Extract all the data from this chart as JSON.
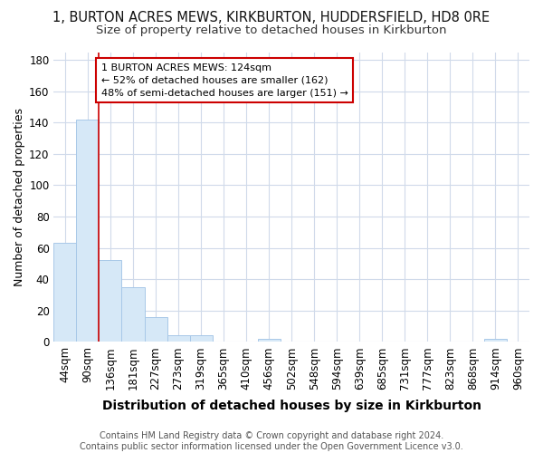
{
  "title": "1, BURTON ACRES MEWS, KIRKBURTON, HUDDERSFIELD, HD8 0RE",
  "subtitle": "Size of property relative to detached houses in Kirkburton",
  "xlabel": "Distribution of detached houses by size in Kirkburton",
  "ylabel": "Number of detached properties",
  "categories": [
    "44sqm",
    "90sqm",
    "136sqm",
    "181sqm",
    "227sqm",
    "273sqm",
    "319sqm",
    "365sqm",
    "410sqm",
    "456sqm",
    "502sqm",
    "548sqm",
    "594sqm",
    "639sqm",
    "685sqm",
    "731sqm",
    "777sqm",
    "823sqm",
    "868sqm",
    "914sqm",
    "960sqm"
  ],
  "values": [
    63,
    142,
    52,
    35,
    16,
    4,
    4,
    0,
    0,
    2,
    0,
    0,
    0,
    0,
    0,
    0,
    0,
    0,
    0,
    2,
    0
  ],
  "bar_color": "#d6e8f7",
  "bar_edge_color": "#a8c8e8",
  "red_line_x": 1.5,
  "annotation_text": "1 BURTON ACRES MEWS: 124sqm\n← 52% of detached houses are smaller (162)\n48% of semi-detached houses are larger (151) →",
  "annotation_box_color": "#ffffff",
  "annotation_box_edge": "#cc0000",
  "ylim": [
    0,
    185
  ],
  "yticks": [
    0,
    20,
    40,
    60,
    80,
    100,
    120,
    140,
    160,
    180
  ],
  "footer": "Contains HM Land Registry data © Crown copyright and database right 2024.\nContains public sector information licensed under the Open Government Licence v3.0.",
  "bg_color": "#ffffff",
  "grid_color": "#d0daea",
  "title_fontsize": 10.5,
  "subtitle_fontsize": 9.5,
  "xlabel_fontsize": 10,
  "ylabel_fontsize": 9,
  "tick_fontsize": 8.5,
  "footer_fontsize": 7,
  "annotation_fontsize": 8
}
